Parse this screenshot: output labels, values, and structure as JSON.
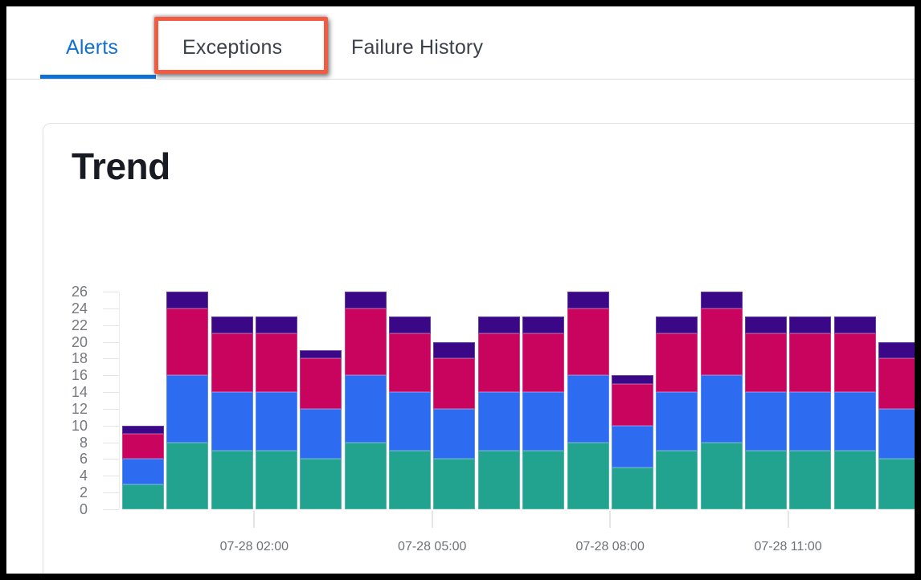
{
  "tabs": {
    "items": [
      {
        "label": "Alerts",
        "active": true
      },
      {
        "label": "Exceptions",
        "active": false
      },
      {
        "label": "Failure History",
        "active": false
      }
    ],
    "active_color": "#1171d2"
  },
  "annotation": {
    "border_color": "#f15b41",
    "highlighted_tab": "Exceptions"
  },
  "card": {
    "title": "Trend"
  },
  "chart_data": {
    "type": "bar",
    "stacked": true,
    "title": "Trend",
    "xlabel": "",
    "ylabel": "",
    "ylim": [
      0,
      26
    ],
    "grid": false,
    "legend_position": "none",
    "y_ticks": [
      0,
      2,
      4,
      6,
      8,
      10,
      12,
      14,
      16,
      18,
      20,
      22,
      24,
      26
    ],
    "x_tick_labels": [
      "07-28 02:00",
      "07-28 05:00",
      "07-28 08:00",
      "07-28 11:00"
    ],
    "x_tick_boundaries": [
      3,
      7,
      11,
      15
    ],
    "bar_count": 18,
    "series": [
      {
        "name": "series-teal",
        "color": "#21a38f",
        "values": [
          3,
          8,
          7,
          7,
          6,
          8,
          7,
          6,
          7,
          7,
          8,
          5,
          7,
          8,
          7,
          7,
          7,
          6
        ]
      },
      {
        "name": "series-blue",
        "color": "#2d6cf0",
        "values": [
          3,
          8,
          7,
          7,
          6,
          8,
          7,
          6,
          7,
          7,
          8,
          5,
          7,
          8,
          7,
          7,
          7,
          6
        ]
      },
      {
        "name": "series-magenta",
        "color": "#c9045f",
        "values": [
          3,
          8,
          7,
          7,
          6,
          8,
          7,
          6,
          7,
          7,
          8,
          5,
          7,
          8,
          7,
          7,
          7,
          6
        ]
      },
      {
        "name": "series-purple",
        "color": "#3a0787",
        "values": [
          1,
          2,
          2,
          2,
          1,
          2,
          2,
          2,
          2,
          2,
          2,
          1,
          2,
          2,
          2,
          2,
          2,
          2
        ]
      }
    ],
    "totals": [
      10,
      26,
      23,
      23,
      19,
      26,
      23,
      20,
      23,
      23,
      26,
      16,
      23,
      26,
      23,
      23,
      23,
      20
    ]
  }
}
